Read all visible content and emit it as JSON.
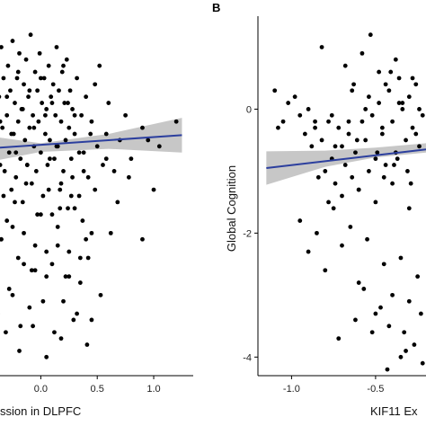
{
  "chart_data": [
    {
      "type": "scatter",
      "panel_label": "",
      "title": "",
      "xlabel": "ssion in DLPFC",
      "ylabel": "",
      "x_ticks": [
        "0.0",
        "0.5",
        "1.0"
      ],
      "y_ticks": [],
      "xlim": [
        -0.6,
        1.35
      ],
      "ylim": [
        -3.2,
        2.6
      ],
      "fit": {
        "x0": -0.6,
        "y0": 0.45,
        "x1": 1.25,
        "y1": 0.68,
        "ci_x": [
          -0.6,
          0.0,
          0.6,
          1.25
        ],
        "ci_lower": [
          0.2,
          0.41,
          0.46,
          0.4
        ],
        "ci_upper": [
          0.7,
          0.55,
          0.7,
          0.96
        ]
      },
      "series": [
        {
          "x": [
            -0.55,
            -0.52,
            -0.5,
            -0.48,
            -0.46,
            -0.45,
            -0.44,
            -0.42,
            -0.41,
            -0.4,
            -0.39,
            -0.37,
            -0.36,
            -0.35,
            -0.34,
            -0.33,
            -0.32,
            -0.3,
            -0.29,
            -0.28,
            -0.27,
            -0.26,
            -0.25,
            -0.24,
            -0.23,
            -0.22,
            -0.21,
            -0.2,
            -0.19,
            -0.18,
            -0.17,
            -0.16,
            -0.15,
            -0.14,
            -0.13,
            -0.12,
            -0.11,
            -0.1,
            -0.09,
            -0.08,
            -0.07,
            -0.06,
            -0.05,
            -0.04,
            -0.03,
            -0.02,
            -0.01,
            0.0,
            0.01,
            0.02,
            0.03,
            0.04,
            0.05,
            0.06,
            0.07,
            0.08,
            0.09,
            0.1,
            0.11,
            0.12,
            0.13,
            0.14,
            0.15,
            0.16,
            0.17,
            0.18,
            0.19,
            0.2,
            0.21,
            0.22,
            0.23,
            0.24,
            0.25,
            0.26,
            0.27,
            0.28,
            0.3,
            0.32,
            0.34,
            0.36,
            0.38,
            0.4,
            0.42,
            0.45,
            0.48,
            0.5,
            0.52,
            0.55,
            0.58,
            0.6,
            0.65,
            0.7,
            0.75,
            0.8,
            0.9,
            1.0,
            1.05,
            1.2,
            -0.5,
            -0.45,
            -0.4,
            -0.35,
            -0.3,
            -0.25,
            -0.2,
            -0.15,
            -0.1,
            -0.05,
            0.0,
            0.05,
            0.1,
            0.15,
            0.2,
            0.25,
            0.3,
            0.35,
            0.4,
            0.45,
            -0.38,
            -0.28,
            -0.18,
            -0.08,
            0.02,
            0.12,
            0.22,
            0.32,
            0.42,
            -0.33,
            -0.23,
            -0.13,
            -0.03,
            0.07,
            0.17,
            0.27,
            0.37,
            -0.43,
            -0.31,
            -0.19,
            -0.07,
            0.05,
            0.18,
            0.29,
            0.41,
            0.53,
            0.62,
            -0.47,
            -0.36,
            -0.26,
            -0.16,
            -0.06,
            0.04,
            0.14,
            0.24,
            0.34,
            0.44,
            -0.4,
            -0.3,
            -0.2,
            -0.1,
            0.0,
            0.1,
            0.2,
            0.3,
            -0.35,
            -0.15,
            0.05,
            0.25,
            -0.25,
            0.15,
            0.35,
            -0.05,
            0.45,
            0.08,
            -0.12,
            0.18,
            0.28,
            -0.22,
            0.38,
            0.48,
            0.58,
            0.68,
            0.78,
            -0.45,
            -0.55,
            0.9,
            0.95
          ],
          "y": [
            1.4,
            0.6,
            1.1,
            1.9,
            0.3,
            1.5,
            0.9,
            1.2,
            0.0,
            1.7,
            0.5,
            1.3,
            0.2,
            2.1,
            0.8,
            1.6,
            0.1,
            1.0,
            1.8,
            0.4,
            1.4,
            -0.2,
            2.2,
            0.7,
            1.2,
            0.0,
            1.6,
            0.9,
            2.0,
            0.3,
            1.1,
            -0.4,
            1.5,
            0.6,
            1.9,
            0.2,
            1.3,
            0.8,
            2.3,
            -0.1,
            1.0,
            0.5,
            1.7,
            0.1,
            1.4,
            0.9,
            2.0,
            0.4,
            1.2,
            -0.3,
            1.6,
            0.7,
            1.1,
            0.2,
            1.8,
            0.6,
            1.3,
            -0.6,
            1.5,
            0.3,
            1.0,
            2.1,
            0.5,
            1.4,
            -0.2,
            0.9,
            1.7,
            0.1,
            1.2,
            0.6,
            1.9,
            -0.5,
            0.8,
            1.4,
            0.3,
            1.1,
            0.7,
            1.6,
            -0.3,
            1.0,
            0.4,
            1.3,
            0.0,
            0.9,
            1.5,
            0.5,
            1.8,
            0.2,
            0.7,
            1.2,
            0.1,
            0.6,
            1.0,
            0.3,
            0.8,
            -0.2,
            0.5,
            0.9,
            -1.2,
            -0.8,
            -1.5,
            -1.0,
            -0.7,
            -1.9,
            -1.3,
            -0.9,
            -2.1,
            -1.1,
            -0.6,
            -1.6,
            -1.4,
            -0.8,
            -2.0,
            -1.2,
            -0.5,
            -1.7,
            -1.0,
            -2.3,
            -2.2,
            -1.8,
            -2.4,
            -1.5,
            -2.0,
            -2.5,
            -1.6,
            -2.2,
            -1.3,
            -0.3,
            -0.4,
            -0.1,
            -0.6,
            -0.2,
            -0.5,
            -0.3,
            -0.7,
            -2.7,
            -2.5,
            -2.8,
            -2.4,
            -2.9,
            -2.6,
            -2.3,
            -2.7,
            -1.9,
            -0.9,
            0.6,
            0.9,
            0.7,
            1.1,
            0.8,
            1.0,
            0.5,
            1.2,
            0.4,
            0.7,
            1.5,
            1.3,
            1.7,
            1.4,
            1.6,
            1.2,
            1.8,
            1.0,
            -1.0,
            -1.4,
            -1.2,
            -1.6,
            -0.8,
            -1.1,
            -1.3,
            -1.5,
            -0.9,
            0.3,
            0.2,
            -0.1,
            0.0,
            0.4,
            0.1,
            -0.2,
            0.3,
            -0.4,
            0.0,
            -2.0,
            -2.8,
            -1.0,
            0.6
          ]
        }
      ]
    },
    {
      "type": "scatter",
      "panel_label": "B",
      "title": "",
      "xlabel": "KIF11 Ex",
      "ylabel": "Global Cognition",
      "x_ticks": [
        "-1.0",
        "-0.5"
      ],
      "y_ticks": [
        "0",
        "-2",
        "-4"
      ],
      "xlim": [
        -1.2,
        -0.2
      ],
      "ylim": [
        -4.3,
        1.5
      ],
      "fit": {
        "x0": -1.15,
        "y0": -0.95,
        "x1": -0.2,
        "y1": -0.65,
        "ci_x": [
          -1.15,
          -0.8,
          -0.5,
          -0.2
        ],
        "ci_lower": [
          -1.22,
          -0.93,
          -0.78,
          -0.7
        ],
        "ci_upper": [
          -0.68,
          -0.67,
          -0.62,
          -0.55
        ]
      },
      "series": [
        {
          "x": [
            -1.1,
            -1.08,
            -1.05,
            -1.02,
            -0.98,
            -0.95,
            -0.92,
            -0.9,
            -0.88,
            -0.86,
            -0.84,
            -0.82,
            -0.8,
            -0.78,
            -0.76,
            -0.74,
            -0.72,
            -0.7,
            -0.68,
            -0.66,
            -0.64,
            -0.62,
            -0.6,
            -0.58,
            -0.56,
            -0.54,
            -0.52,
            -0.5,
            -0.48,
            -0.46,
            -0.44,
            -0.42,
            -0.4,
            -0.38,
            -0.36,
            -0.34,
            -0.32,
            -0.3,
            -0.28,
            -0.26,
            -0.24,
            -0.22,
            -0.95,
            -0.9,
            -0.85,
            -0.8,
            -0.75,
            -0.7,
            -0.65,
            -0.6,
            -0.55,
            -0.5,
            -0.45,
            -0.4,
            -0.35,
            -0.3,
            -0.25,
            -0.72,
            -0.62,
            -0.52,
            -0.42,
            -0.32,
            -0.82,
            -0.68,
            -0.58,
            -0.48,
            -0.38,
            -0.28,
            -0.76,
            -0.66,
            -0.56,
            -0.46,
            -0.36,
            -0.26,
            -0.64,
            -0.54,
            -0.44,
            -0.34,
            -0.24,
            -0.7,
            -0.6,
            -0.5,
            -0.4,
            -0.3,
            -0.86,
            -0.74,
            -0.61,
            -0.49,
            -0.37,
            -0.57,
            -0.47,
            -0.33,
            -0.23,
            -0.43,
            -0.35,
            -0.27,
            -0.22,
            -0.45,
            -0.39,
            -0.31,
            -0.29,
            -0.41,
            -0.53,
            -0.63,
            -0.78
          ],
          "y": [
            0.3,
            -0.3,
            -0.2,
            0.1,
            0.2,
            -0.1,
            -0.4,
            0.0,
            -0.6,
            -0.2,
            -1.1,
            -0.5,
            -1.0,
            -1.5,
            -0.8,
            -1.2,
            -0.3,
            -0.6,
            -0.9,
            -0.4,
            -1.1,
            -0.7,
            -1.3,
            -0.2,
            -0.5,
            -1.0,
            -0.1,
            -0.8,
            0.1,
            -0.4,
            -0.9,
            0.3,
            -0.2,
            -0.7,
            0.5,
            0.0,
            -0.5,
            0.2,
            -0.3,
            0.4,
            -0.6,
            -0.1,
            -1.8,
            -2.3,
            -2.0,
            -2.6,
            -1.6,
            -2.2,
            -1.9,
            -2.8,
            -2.1,
            -3.3,
            -2.5,
            -3.0,
            -2.4,
            -3.1,
            -2.7,
            -3.7,
            -3.4,
            -3.6,
            -3.5,
            -3.9,
            1.0,
            0.7,
            0.9,
            0.6,
            0.8,
            0.5,
            -0.1,
            -0.2,
            0.0,
            -0.3,
            0.1,
            -0.4,
            0.3,
            0.2,
            0.4,
            0.1,
            0.0,
            -1.4,
            -1.3,
            -1.5,
            -1.2,
            -1.6,
            -0.3,
            -0.6,
            -0.5,
            -0.7,
            -0.8,
            -2.9,
            -3.2,
            -3.6,
            -3.3,
            -4.2,
            -4.0,
            -3.8,
            -4.1,
            -1.1,
            -0.9,
            -1.0,
            -1.2,
            0.6,
            1.2,
            0.4,
            -0.2
          ]
        }
      ]
    }
  ]
}
